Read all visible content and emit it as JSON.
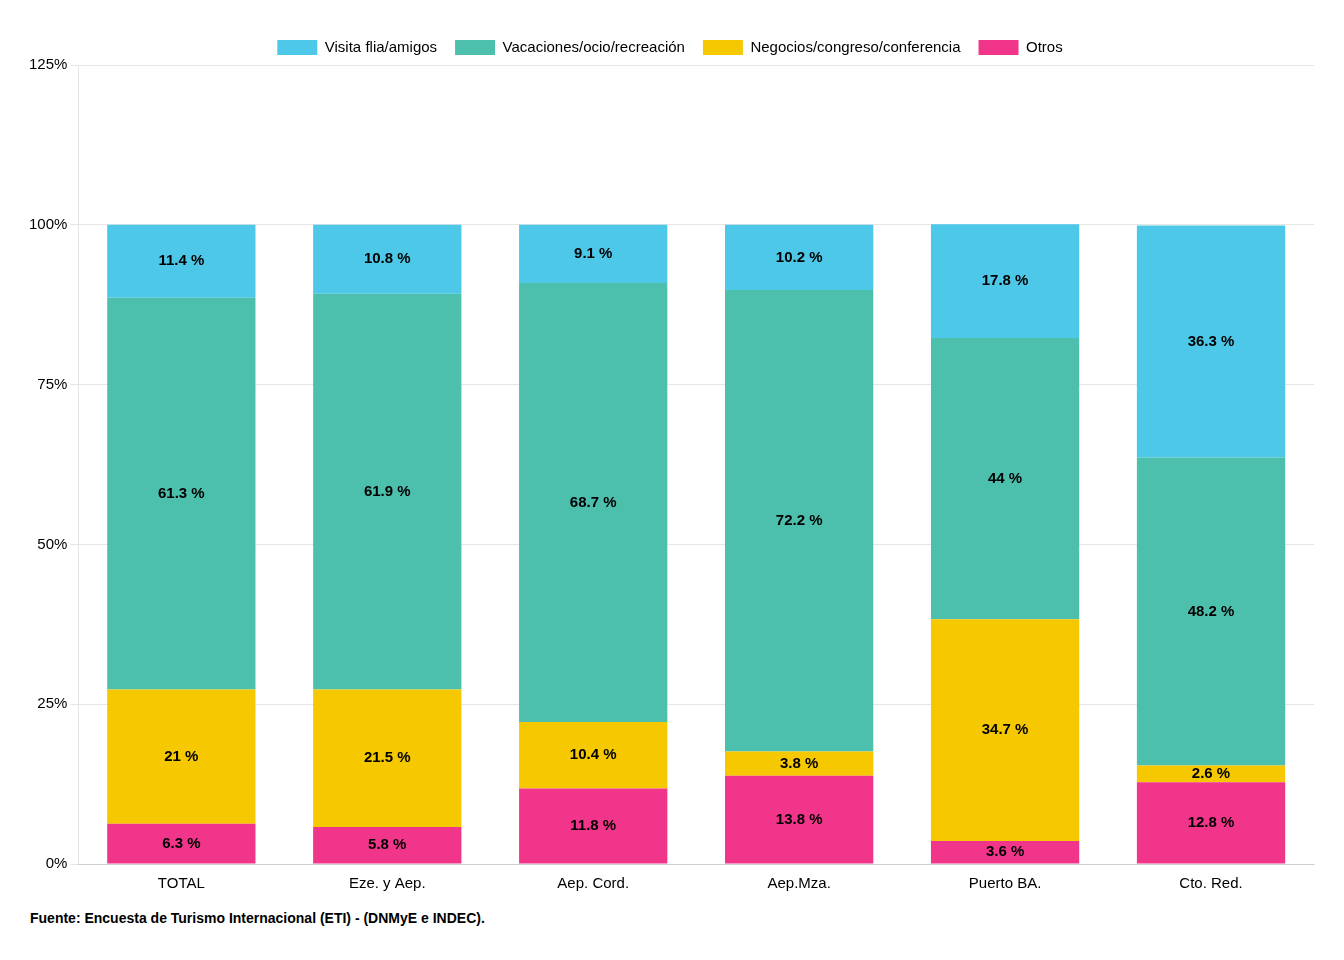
{
  "chart_data": {
    "type": "bar",
    "stacked": true,
    "categories": [
      "TOTAL",
      "Eze. y Aep.",
      "Aep. Cord.",
      "Aep.Mza.",
      "Puerto BA.",
      "Cto. Red."
    ],
    "series": [
      {
        "name": "Otros",
        "color": "#F0358A",
        "values": [
          6.3,
          5.8,
          11.8,
          13.8,
          3.6,
          12.8
        ],
        "value_labels": [
          "6.3 %",
          "5.8 %",
          "11.8 %",
          "13.8 %",
          "3.6 %",
          "12.8 %"
        ]
      },
      {
        "name": "Negocios/congreso/conferencia",
        "color": "#F5C800",
        "values": [
          21.0,
          21.5,
          10.4,
          3.8,
          34.7,
          2.6
        ],
        "value_labels": [
          "21 %",
          "21.5 %",
          "10.4 %",
          "3.8 %",
          "34.7 %",
          "2.6 %"
        ]
      },
      {
        "name": "Vacaciones/ocio/recreación",
        "color": "#4DBFAD",
        "values": [
          61.3,
          61.9,
          68.7,
          72.2,
          44.0,
          48.2
        ],
        "value_labels": [
          "61.3 %",
          "61.9 %",
          "68.7 %",
          "72.2 %",
          "44 %",
          "48.2 %"
        ]
      },
      {
        "name": "Visita flia/amigos",
        "color": "#4DC8E8",
        "values": [
          11.4,
          10.8,
          9.1,
          10.2,
          17.8,
          36.3
        ],
        "value_labels": [
          "11.4 %",
          "10.8 %",
          "9.1 %",
          "10.2 %",
          "17.8 %",
          "36.3 %"
        ]
      }
    ],
    "ylim": [
      0,
      125
    ],
    "yticks": [
      {
        "value": 0,
        "label": "0%"
      },
      {
        "value": 25,
        "label": "25%"
      },
      {
        "value": 50,
        "label": "50%"
      },
      {
        "value": 75,
        "label": "75%"
      },
      {
        "value": 100,
        "label": "100%"
      },
      {
        "value": 125,
        "label": "125%"
      }
    ],
    "grid": true,
    "legend": "top",
    "data_labels": true,
    "annotations": [
      "Fuente: Encuesta de Turismo Internacional (ETI) - (DNMyE e INDEC)."
    ]
  }
}
